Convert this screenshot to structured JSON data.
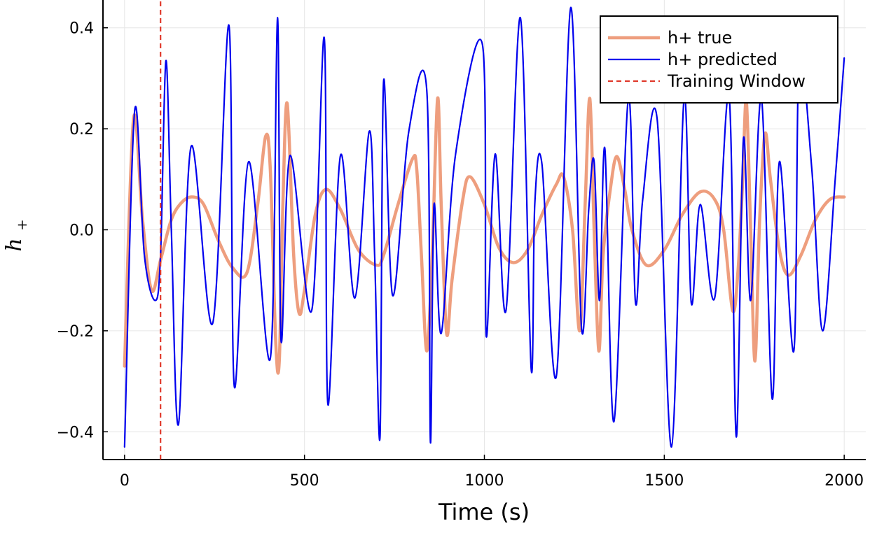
{
  "chart_data": {
    "type": "line",
    "title": "",
    "xlabel": "Time (s)",
    "ylabel": "h",
    "ylabel_subscript": "+",
    "xlim": [
      -60,
      2060
    ],
    "ylim": [
      -0.455,
      0.455
    ],
    "xticks": [
      0,
      500,
      1000,
      1500,
      2000
    ],
    "xtick_labels": [
      "0",
      "500",
      "1000",
      "1500",
      "2000"
    ],
    "yticks": [
      -0.4,
      -0.2,
      0.0,
      0.2,
      0.4
    ],
    "ytick_labels": [
      "−0.4",
      "−0.2",
      "0.0",
      "0.2",
      "0.4"
    ],
    "grid": true,
    "legend_position": "top-right",
    "series": [
      {
        "name": "h+ true",
        "color": "#ee9e7e",
        "style": "solid",
        "x": [
          0,
          25,
          50,
          75,
          100,
          130,
          160,
          190,
          220,
          260,
          300,
          340,
          370,
          392,
          405,
          420,
          430,
          440,
          452,
          470,
          485,
          500,
          530,
          560,
          600,
          650,
          700,
          720,
          760,
          800,
          812,
          825,
          840,
          855,
          870,
          880,
          895,
          910,
          940,
          960,
          1000,
          1040,
          1080,
          1120,
          1160,
          1200,
          1220,
          1245,
          1265,
          1280,
          1293,
          1305,
          1318,
          1330,
          1350,
          1368,
          1390,
          1410,
          1450,
          1500,
          1550,
          1600,
          1640,
          1665,
          1690,
          1705,
          1718,
          1728,
          1740,
          1752,
          1765,
          1780,
          1795,
          1820,
          1845,
          1880,
          1920,
          1960,
          2000
        ],
        "y": [
          -0.27,
          0.22,
          0.02,
          -0.12,
          -0.06,
          0.02,
          0.055,
          0.065,
          0.05,
          -0.02,
          -0.075,
          -0.085,
          0.05,
          0.185,
          0.12,
          -0.22,
          -0.26,
          0.05,
          0.25,
          -0.05,
          -0.165,
          -0.12,
          0.03,
          0.08,
          0.04,
          -0.04,
          -0.07,
          -0.05,
          0.05,
          0.14,
          0.12,
          -0.05,
          -0.24,
          -0.05,
          0.26,
          0.05,
          -0.205,
          -0.1,
          0.06,
          0.105,
          0.05,
          -0.035,
          -0.065,
          -0.04,
          0.03,
          0.09,
          0.105,
          0.0,
          -0.2,
          0.05,
          0.26,
          0.0,
          -0.24,
          -0.05,
          0.08,
          0.145,
          0.08,
          0.0,
          -0.07,
          -0.04,
          0.03,
          0.075,
          0.06,
          0.0,
          -0.16,
          -0.08,
          0.1,
          0.255,
          0.0,
          -0.26,
          0.02,
          0.19,
          0.1,
          -0.04,
          -0.09,
          -0.05,
          0.02,
          0.06,
          0.065
        ]
      },
      {
        "name": "h+ predicted",
        "color": "#0000ee",
        "style": "solid",
        "x": [
          0,
          28,
          55,
          85,
          100,
          115,
          130,
          150,
          185,
          245,
          290,
          305,
          345,
          405,
          425,
          435,
          460,
          520,
          555,
          565,
          600,
          640,
          680,
          695,
          710,
          720,
          745,
          790,
          840,
          850,
          860,
          880,
          920,
          995,
          1005,
          1030,
          1060,
          1100,
          1130,
          1140,
          1160,
          1200,
          1240,
          1270,
          1290,
          1305,
          1320,
          1335,
          1360,
          1400,
          1420,
          1440,
          1480,
          1520,
          1555,
          1575,
          1600,
          1640,
          1680,
          1700,
          1720,
          1740,
          1770,
          1800,
          1820,
          1860,
          1875,
          1910,
          1940,
          1975,
          2000
        ],
        "y": [
          -0.43,
          0.235,
          -0.05,
          -0.14,
          -0.05,
          0.335,
          0.0,
          -0.385,
          0.165,
          -0.185,
          0.405,
          -0.31,
          0.135,
          -0.255,
          0.42,
          -0.22,
          0.147,
          -0.16,
          0.38,
          -0.345,
          0.147,
          -0.135,
          0.195,
          -0.05,
          -0.41,
          0.295,
          -0.13,
          0.195,
          0.275,
          -0.42,
          0.05,
          -0.205,
          0.15,
          0.365,
          -0.21,
          0.15,
          -0.16,
          0.42,
          -0.275,
          0.05,
          0.13,
          -0.29,
          0.44,
          -0.195,
          0.04,
          0.135,
          -0.14,
          0.16,
          -0.38,
          0.26,
          -0.145,
          0.06,
          0.22,
          -0.43,
          0.26,
          -0.145,
          0.05,
          -0.135,
          0.265,
          -0.41,
          0.18,
          -0.14,
          0.26,
          -0.335,
          0.135,
          -0.24,
          0.34,
          0.12,
          -0.2,
          0.1,
          0.34
        ]
      },
      {
        "name": "Training Window",
        "color": "#e0392b",
        "style": "dashed",
        "x": [
          100,
          100
        ],
        "y": [
          -0.455,
          0.455
        ]
      }
    ]
  }
}
